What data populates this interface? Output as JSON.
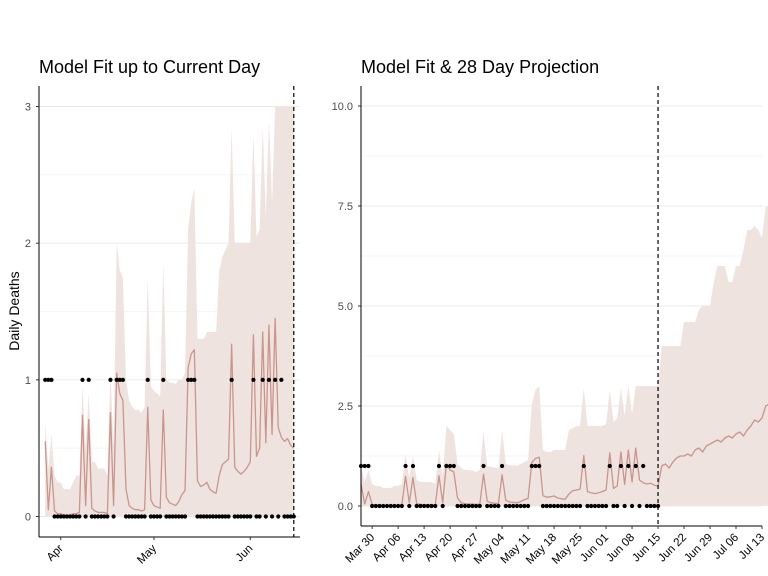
{
  "colors": {
    "ribbon": "#efe3e0",
    "median_line": "#c9958c",
    "observed_points": "#000000",
    "grid": "#ebebeb",
    "current_day_line": "#000000"
  },
  "chart_data": [
    {
      "type": "line",
      "title": "Model Fit up to Current Day",
      "xlabel": "",
      "ylabel": "Daily Deaths",
      "x_start": "2020-03-27",
      "x_range": [
        "2020-03-25",
        "2020-06-17"
      ],
      "ylim": [
        -0.15,
        3.15
      ],
      "y_ticks": [
        0,
        1,
        2,
        3
      ],
      "y_tick_labels": [
        "0",
        "1",
        "2",
        "3"
      ],
      "x_ticks": [
        "2020-04-01",
        "2020-05-01",
        "2020-06-01"
      ],
      "x_tick_labels": [
        "Apr",
        "May",
        "Jun"
      ],
      "current_day": "2020-06-15",
      "grid": true,
      "series": [
        {
          "kind": "observed_points",
          "values": [
            1,
            1,
            1,
            0,
            0,
            0,
            0,
            0,
            0,
            0,
            0,
            0,
            1,
            0,
            1,
            0,
            0,
            0,
            0,
            0,
            0,
            1,
            0,
            1,
            1,
            1,
            0,
            0,
            0,
            0,
            0,
            0,
            0,
            1,
            0,
            0,
            0,
            0,
            1,
            0,
            0,
            0,
            0,
            0,
            0,
            0,
            1,
            1,
            1,
            0,
            0,
            0,
            0,
            0,
            0,
            0,
            0,
            0,
            0,
            0,
            1,
            0,
            0,
            0,
            0,
            0,
            0,
            1,
            0,
            0,
            1,
            0,
            1,
            0,
            1,
            0,
            1,
            0,
            0,
            0,
            0
          ]
        },
        {
          "kind": "median_line",
          "values": [
            0.55,
            0.05,
            0.36,
            0.04,
            0.02,
            0.02,
            0.01,
            0.01,
            0.01,
            0.02,
            0.02,
            0.03,
            0.74,
            0.08,
            0.71,
            0.06,
            0.04,
            0.03,
            0.03,
            0.03,
            0.02,
            0.76,
            0.08,
            1.05,
            0.9,
            0.85,
            0.2,
            0.08,
            0.06,
            0.05,
            0.05,
            0.04,
            0.05,
            0.8,
            0.12,
            0.08,
            0.07,
            0.06,
            0.78,
            0.14,
            0.1,
            0.09,
            0.08,
            0.11,
            0.16,
            0.19,
            1.09,
            1.19,
            1.22,
            0.26,
            0.22,
            0.23,
            0.25,
            0.2,
            0.18,
            0.17,
            0.3,
            0.38,
            0.4,
            0.42,
            1.26,
            0.36,
            0.33,
            0.31,
            0.33,
            0.36,
            0.4,
            1.33,
            0.44,
            0.5,
            1.35,
            0.54,
            1.4,
            0.6,
            1.45,
            0.65,
            0.58,
            0.55,
            0.57,
            0.52,
            0.5
          ]
        },
        {
          "kind": "interval_upper",
          "values": [
            0.7,
            0.35,
            0.6,
            0.3,
            0.25,
            0.25,
            0.2,
            0.2,
            0.2,
            0.25,
            0.3,
            0.3,
            0.95,
            0.5,
            0.9,
            0.4,
            0.4,
            0.35,
            0.35,
            0.35,
            0.3,
            1.05,
            0.5,
            2.0,
            1.8,
            1.75,
            1.0,
            0.85,
            0.8,
            0.78,
            0.78,
            0.76,
            0.8,
            1.75,
            0.95,
            0.92,
            0.9,
            0.88,
            1.85,
            1.0,
            0.98,
            0.98,
            0.97,
            1.0,
            1.0,
            1.05,
            2.1,
            2.3,
            2.4,
            1.3,
            1.3,
            1.3,
            1.35,
            1.35,
            1.35,
            1.35,
            1.8,
            1.9,
            1.95,
            2.0,
            2.85,
            2.0,
            2.0,
            2.0,
            2.0,
            2.0,
            2.0,
            2.8,
            2.05,
            2.1,
            2.85,
            2.2,
            2.9,
            2.3,
            3.0,
            3.0,
            3.0,
            3.0,
            3.0,
            3.0,
            3.0
          ]
        }
      ]
    },
    {
      "type": "line",
      "title": "Model Fit & 28 Day Projection",
      "xlabel": "",
      "ylabel": "",
      "x_start": "2020-03-27",
      "x_range": [
        "2020-03-27",
        "2020-07-13"
      ],
      "ylim": [
        -0.5,
        10.5
      ],
      "y_ticks": [
        0,
        2.5,
        5,
        7.5,
        10
      ],
      "y_tick_labels": [
        "0.0",
        "2.5",
        "5.0",
        "7.5",
        "10.0"
      ],
      "x_ticks": [
        "2020-03-30",
        "2020-04-06",
        "2020-04-13",
        "2020-04-20",
        "2020-04-27",
        "2020-05-04",
        "2020-05-11",
        "2020-05-18",
        "2020-05-25",
        "2020-06-01",
        "2020-06-08",
        "2020-06-15",
        "2020-06-22",
        "2020-06-29",
        "2020-07-06",
        "2020-07-13"
      ],
      "x_tick_labels": [
        "Mar 30",
        "Apr 06",
        "Apr 13",
        "Apr 20",
        "Apr 27",
        "May 04",
        "May 11",
        "May 18",
        "May 25",
        "Jun 01",
        "Jun 08",
        "Jun 15",
        "Jun 22",
        "Jun 29",
        "Jul 06",
        "Jul 13"
      ],
      "current_day": "2020-06-15",
      "grid": true,
      "series": [
        {
          "kind": "observed_points",
          "values": [
            1,
            1,
            1,
            0,
            0,
            0,
            0,
            0,
            0,
            0,
            0,
            0,
            1,
            0,
            1,
            0,
            0,
            0,
            0,
            0,
            0,
            1,
            0,
            1,
            1,
            1,
            0,
            0,
            0,
            0,
            0,
            0,
            0,
            1,
            0,
            0,
            0,
            0,
            1,
            0,
            0,
            0,
            0,
            0,
            0,
            0,
            1,
            1,
            1,
            0,
            0,
            0,
            0,
            0,
            0,
            0,
            0,
            0,
            0,
            0,
            1,
            0,
            0,
            0,
            0,
            0,
            0,
            1,
            0,
            0,
            1,
            0,
            1,
            0,
            1,
            0,
            1,
            0,
            0,
            0,
            0
          ]
        },
        {
          "kind": "median_line",
          "values": [
            0.55,
            0.05,
            0.36,
            0.04,
            0.02,
            0.02,
            0.01,
            0.01,
            0.01,
            0.02,
            0.02,
            0.03,
            0.74,
            0.08,
            0.71,
            0.06,
            0.04,
            0.03,
            0.03,
            0.03,
            0.02,
            0.76,
            0.08,
            1.05,
            0.9,
            0.85,
            0.2,
            0.08,
            0.06,
            0.05,
            0.05,
            0.04,
            0.05,
            0.8,
            0.12,
            0.08,
            0.07,
            0.06,
            0.78,
            0.14,
            0.1,
            0.09,
            0.08,
            0.11,
            0.16,
            0.19,
            1.09,
            1.19,
            1.22,
            0.26,
            0.22,
            0.23,
            0.25,
            0.2,
            0.18,
            0.17,
            0.3,
            0.38,
            0.4,
            0.42,
            1.26,
            0.36,
            0.33,
            0.31,
            0.33,
            0.36,
            0.4,
            1.33,
            0.44,
            0.5,
            1.35,
            0.54,
            1.4,
            0.6,
            1.45,
            0.65,
            0.58,
            0.55,
            0.57,
            0.52,
            0.5,
            1.0,
            1.05,
            0.95,
            1.1,
            1.2,
            1.25,
            1.25,
            1.3,
            1.25,
            1.4,
            1.45,
            1.35,
            1.5,
            1.55,
            1.6,
            1.65,
            1.6,
            1.7,
            1.75,
            1.7,
            1.8,
            1.85,
            1.75,
            1.9,
            2.0,
            2.15,
            2.1,
            2.2,
            2.5,
            2.55,
            2.8,
            2.95
          ]
        },
        {
          "kind": "interval_upper",
          "values": [
            1.0,
            0.6,
            0.9,
            0.55,
            0.5,
            0.5,
            0.45,
            0.45,
            0.45,
            0.5,
            0.5,
            0.55,
            1.3,
            0.7,
            1.25,
            0.65,
            0.6,
            0.6,
            0.6,
            0.6,
            0.55,
            1.4,
            0.75,
            2.0,
            1.9,
            1.8,
            1.05,
            0.95,
            0.9,
            0.9,
            0.88,
            0.85,
            0.9,
            1.85,
            1.0,
            0.98,
            0.96,
            0.95,
            1.9,
            1.05,
            1.02,
            1.02,
            1.0,
            1.05,
            1.1,
            1.15,
            2.55,
            2.9,
            3.0,
            1.4,
            1.35,
            1.35,
            1.4,
            1.4,
            1.4,
            1.4,
            1.9,
            1.95,
            2.0,
            2.0,
            2.95,
            2.0,
            2.0,
            2.0,
            2.0,
            2.0,
            2.05,
            2.9,
            2.1,
            2.2,
            2.95,
            2.25,
            3.0,
            2.3,
            3.0,
            3.0,
            3.0,
            3.0,
            3.0,
            3.0,
            3.0,
            4.0,
            4.0,
            4.0,
            4.0,
            4.0,
            4.0,
            4.6,
            4.6,
            4.6,
            4.6,
            4.9,
            5.0,
            5.0,
            5.0,
            5.6,
            6.0,
            6.0,
            6.0,
            5.6,
            5.6,
            6.0,
            6.0,
            6.4,
            6.9,
            6.9,
            7.0,
            6.9,
            6.7,
            7.5,
            7.5,
            8.2,
            8.6
          ]
        }
      ]
    }
  ]
}
